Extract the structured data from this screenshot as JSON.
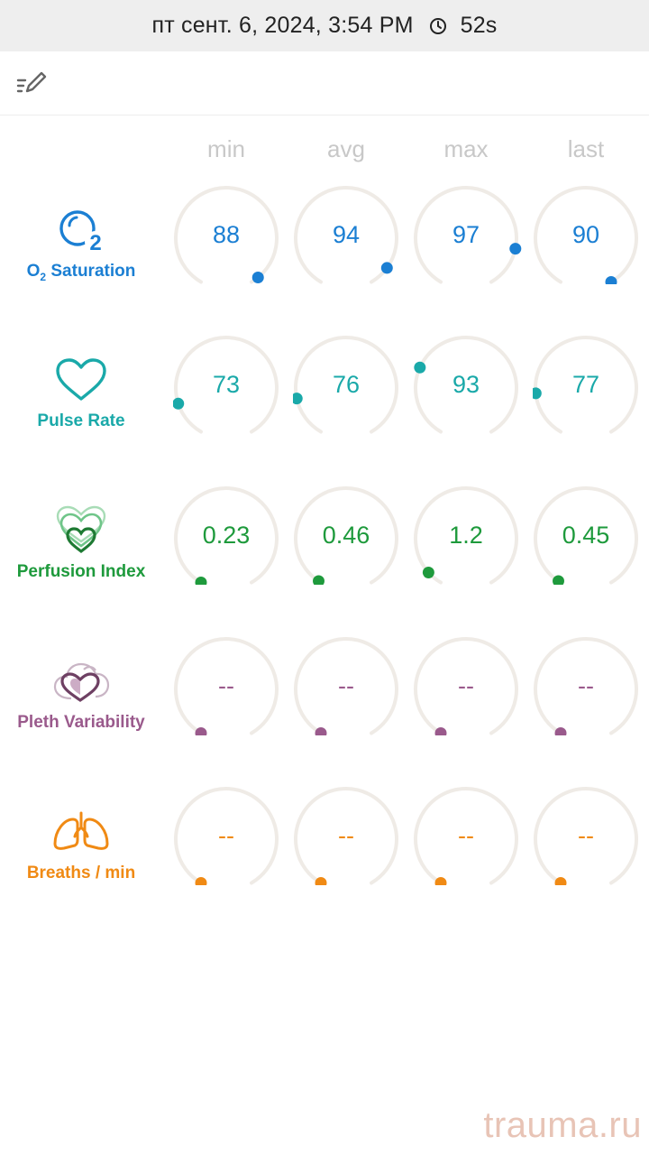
{
  "header": {
    "datetime": "пт сент. 6, 2024, 3:54 PM",
    "duration": "52s",
    "clock_icon": "clock-icon"
  },
  "toolbar": {
    "edit_icon": "edit-list-icon"
  },
  "columns": [
    "min",
    "avg",
    "max",
    "last"
  ],
  "metrics": [
    {
      "label_main": "O",
      "label_sub": "2",
      "label_rest": " Saturation",
      "icon": "o2-saturation-icon",
      "color": "#1b7fd3",
      "values": [
        "88",
        "94",
        "97",
        "90"
      ],
      "gauge_levels": [
        0.97,
        0.92,
        0.84,
        1.0
      ]
    },
    {
      "label": "Pulse Rate",
      "icon": "heart-icon",
      "color": "#1aa9a9",
      "values": [
        "73",
        "76",
        "93",
        "77"
      ],
      "gauge_levels": [
        0.14,
        0.16,
        0.28,
        0.18
      ]
    },
    {
      "label": "Perfusion Index",
      "icon": "perfusion-hearts-icon",
      "color": "#1e9a3c",
      "values": [
        "0.23",
        "0.46",
        "1.2",
        "0.45"
      ],
      "gauge_levels": [
        0.0,
        0.01,
        0.06,
        0.01
      ]
    },
    {
      "label": "Pleth Variability",
      "icon": "pleth-variability-icon",
      "color": "#9a5a8c",
      "values": [
        "--",
        "--",
        "--",
        "--"
      ],
      "gauge_levels": [
        0,
        0,
        0,
        0
      ]
    },
    {
      "label": "Breaths / min",
      "icon": "lungs-icon",
      "color": "#f08a14",
      "values": [
        "--",
        "--",
        "--",
        "--"
      ],
      "gauge_levels": [
        0,
        0,
        0,
        0
      ]
    }
  ],
  "watermark": "trauma.ru"
}
